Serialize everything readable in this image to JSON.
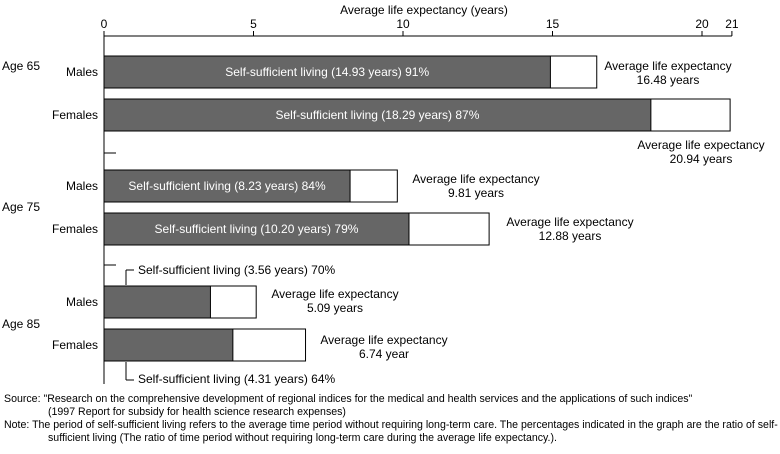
{
  "chart_data": {
    "type": "bar",
    "orientation": "horizontal",
    "stacked": true,
    "xlabel": "Average life expectancy (years)",
    "xlim": [
      0,
      21
    ],
    "xticks": [
      0,
      5,
      10,
      15,
      20,
      21
    ],
    "groups": [
      {
        "label": "Age 65",
        "rows": [
          {
            "category": "Males",
            "self_sufficient_years": 14.93,
            "life_expectancy": 16.48,
            "ratio_percent": 91,
            "inside_label": "Self-sufficient living (14.93 years) 91%",
            "le_label_line1": "Average life expectancy",
            "le_label_line2": "16.48 years"
          },
          {
            "category": "Females",
            "self_sufficient_years": 18.29,
            "life_expectancy": 20.94,
            "ratio_percent": 87,
            "inside_label": "Self-sufficient living (18.29 years) 87%",
            "le_label_line1": "Average life expectancy",
            "le_label_line2": "20.94 years"
          }
        ]
      },
      {
        "label": "Age 75",
        "rows": [
          {
            "category": "Males",
            "self_sufficient_years": 8.23,
            "life_expectancy": 9.81,
            "ratio_percent": 84,
            "inside_label": "Self-sufficient living (8.23 years) 84%",
            "le_label_line1": "Average life expectancy",
            "le_label_line2": "9.81 years"
          },
          {
            "category": "Females",
            "self_sufficient_years": 10.2,
            "life_expectancy": 12.88,
            "ratio_percent": 79,
            "inside_label": "Self-sufficient living (10.20 years) 79%",
            "le_label_line1": "Average life expectancy",
            "le_label_line2": "12.88 years"
          }
        ]
      },
      {
        "label": "Age 85",
        "rows": [
          {
            "category": "Males",
            "self_sufficient_years": 3.56,
            "life_expectancy": 5.09,
            "ratio_percent": 70,
            "outside_label": "Self-sufficient living (3.56 years) 70%",
            "le_label_line1": "Average life expectancy",
            "le_label_line2": "5.09 years"
          },
          {
            "category": "Females",
            "self_sufficient_years": 4.31,
            "life_expectancy": 6.74,
            "ratio_percent": 64,
            "outside_label": "Self-sufficient living (4.31 years) 64%",
            "le_label_line1": "Average life expectancy",
            "le_label_line2": "6.74 year"
          }
        ]
      }
    ],
    "colors": {
      "self_sufficient": "#666666",
      "remainder": "#ffffff",
      "outline": "#000000"
    }
  },
  "notes": {
    "source_line1": "Source:  \"Research on the comprehensive development of regional indices for the medical and health services and the applications of such indices\"",
    "source_line2": "(1997 Report for subsidy for health science research expenses)",
    "note": "Note:  The period of self-sufficient living refers to the average time period without requiring long-term care. The percentages indicated in the graph are the ratio of self-sufficient living (The ratio of time period without requiring long-term care during the average life expectancy.)."
  }
}
